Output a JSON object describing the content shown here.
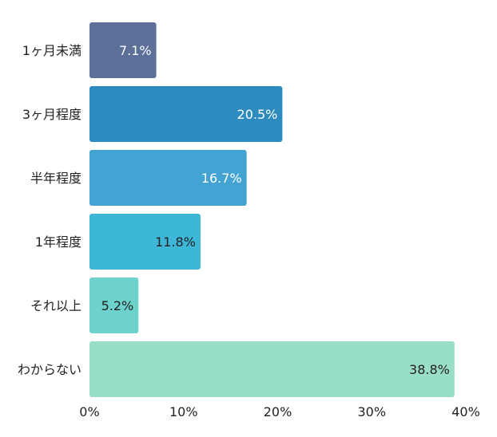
{
  "chart_data": {
    "type": "bar",
    "orientation": "horizontal",
    "categories": [
      "1ヶ月未満",
      "3ヶ月程度",
      "半年程度",
      "1年程度",
      "それ以上",
      "わからない"
    ],
    "values": [
      7.1,
      20.5,
      16.7,
      11.8,
      5.2,
      38.8
    ],
    "value_labels": [
      "7.1%",
      "20.5%",
      "16.7%",
      "11.8%",
      "5.2%",
      "38.8%"
    ],
    "colors": [
      "#5b6f99",
      "#2e8bbf",
      "#43a3d3",
      "#3db7d8",
      "#6dd2cc",
      "#98dec8"
    ],
    "label_colors": [
      "#ffffff",
      "#ffffff",
      "#ffffff",
      "#222222",
      "#222222",
      "#222222"
    ],
    "xlim": [
      0,
      40
    ],
    "xticks": [
      0,
      10,
      20,
      30,
      40
    ],
    "xtick_labels": [
      "0%",
      "10%",
      "20%",
      "30%",
      "40%"
    ],
    "title": "",
    "xlabel": "",
    "ylabel": "",
    "grid": false,
    "legend": "none"
  }
}
